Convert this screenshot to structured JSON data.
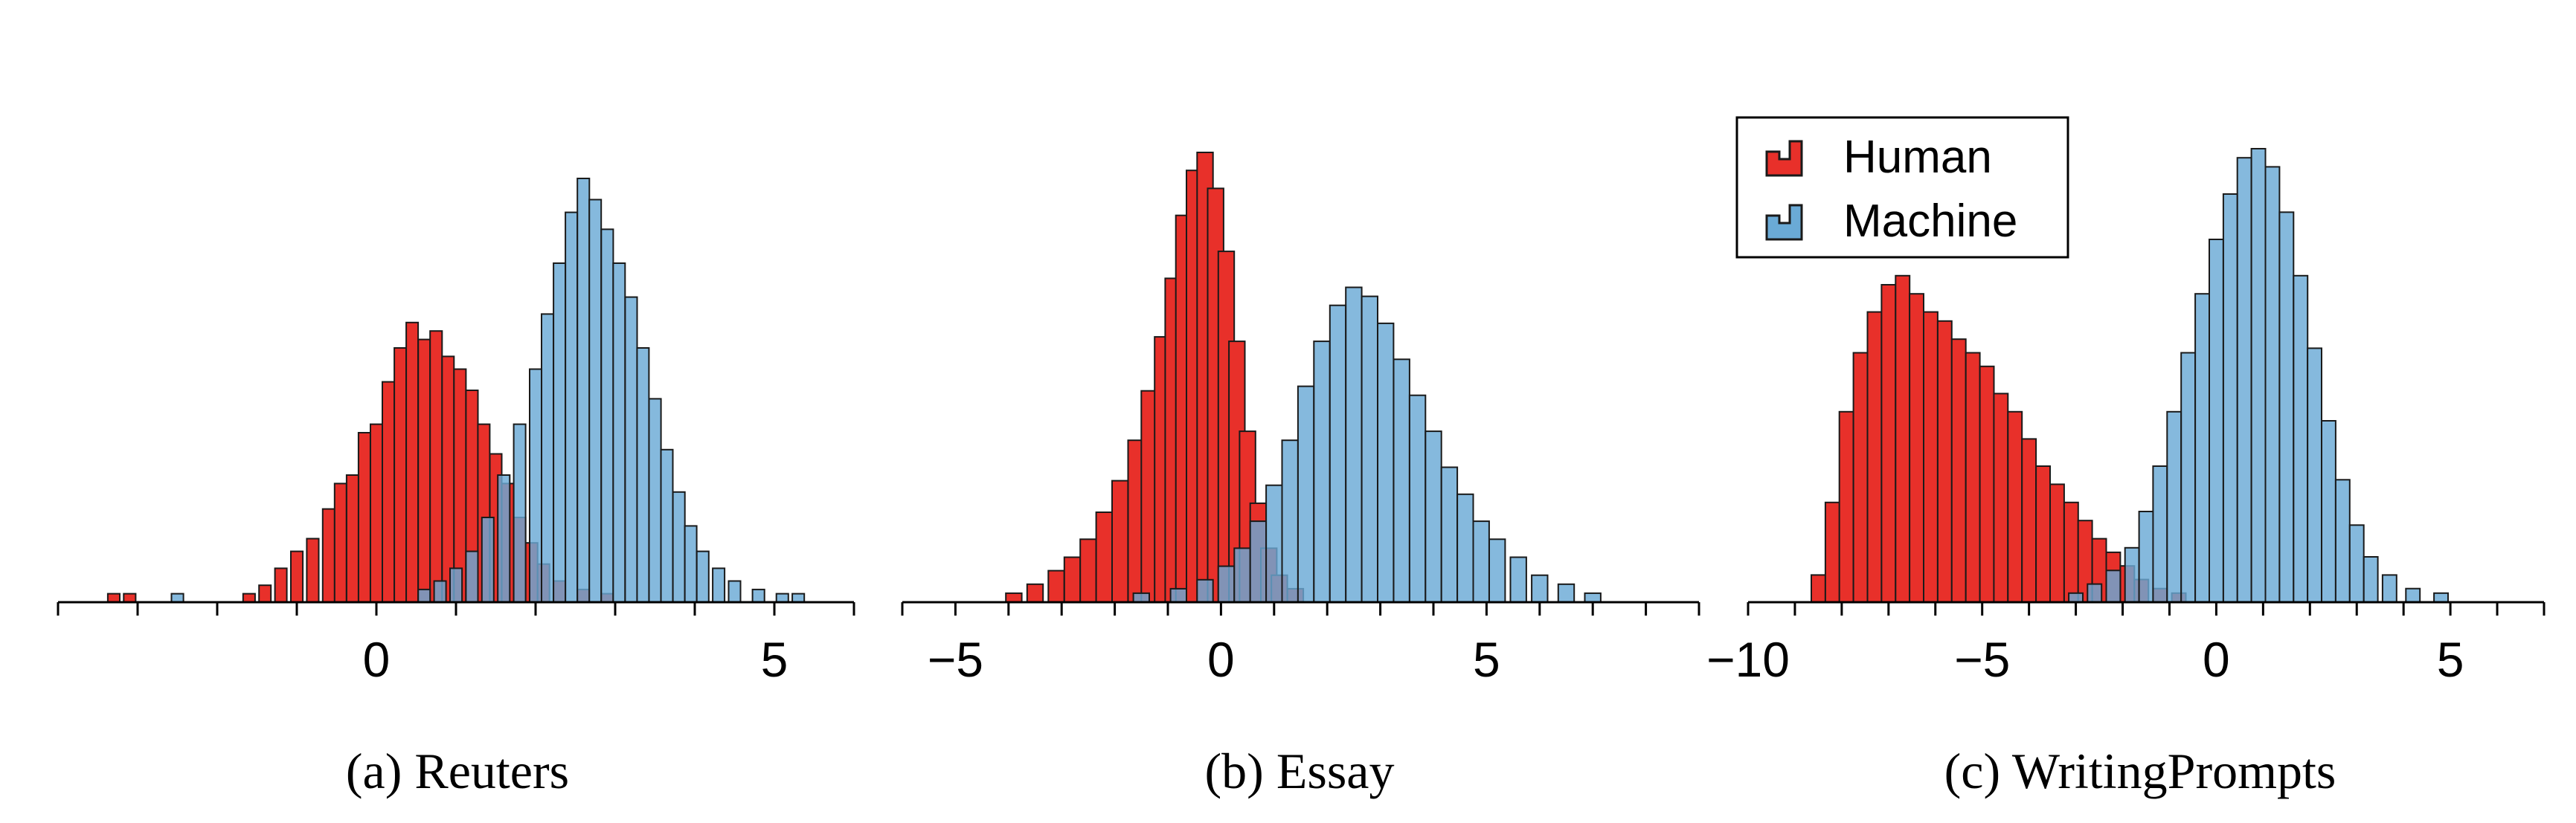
{
  "colors": {
    "human": "#e8302a",
    "machine": "#6aaad6",
    "overlap": "#6a7fa8",
    "stroke": "#1a1a1a"
  },
  "legend": {
    "items": [
      {
        "label": "Human",
        "color": "#e8302a"
      },
      {
        "label": "Machine",
        "color": "#6aaad6"
      }
    ]
  },
  "chart_data": [
    {
      "type": "histogram",
      "caption": "(a) Reuters",
      "xlim": [
        -4,
        6
      ],
      "ticks": [
        0,
        5
      ],
      "tick_labels": [
        "0",
        "5"
      ],
      "series": [
        {
          "name": "Human",
          "bins": [
            [
              -3.3,
              0.02
            ],
            [
              -3.1,
              0.02
            ],
            [
              -1.6,
              0.02
            ],
            [
              -1.4,
              0.04
            ],
            [
              -1.2,
              0.08
            ],
            [
              -1.0,
              0.12
            ],
            [
              -0.8,
              0.15
            ],
            [
              -0.6,
              0.22
            ],
            [
              -0.45,
              0.28
            ],
            [
              -0.3,
              0.3
            ],
            [
              -0.15,
              0.4
            ],
            [
              0.0,
              0.42
            ],
            [
              0.15,
              0.52
            ],
            [
              0.3,
              0.6
            ],
            [
              0.45,
              0.66
            ],
            [
              0.6,
              0.62
            ],
            [
              0.75,
              0.64
            ],
            [
              0.9,
              0.58
            ],
            [
              1.05,
              0.55
            ],
            [
              1.2,
              0.5
            ],
            [
              1.35,
              0.42
            ],
            [
              1.5,
              0.35
            ],
            [
              1.65,
              0.28
            ],
            [
              1.8,
              0.2
            ],
            [
              1.95,
              0.14
            ],
            [
              2.1,
              0.09
            ],
            [
              2.3,
              0.05
            ],
            [
              2.6,
              0.03
            ],
            [
              2.9,
              0.02
            ]
          ]
        },
        {
          "name": "Machine",
          "bins": [
            [
              -2.5,
              0.02
            ],
            [
              0.6,
              0.03
            ],
            [
              0.8,
              0.05
            ],
            [
              1.0,
              0.08
            ],
            [
              1.2,
              0.12
            ],
            [
              1.4,
              0.2
            ],
            [
              1.6,
              0.3
            ],
            [
              1.8,
              0.42
            ],
            [
              2.0,
              0.55
            ],
            [
              2.15,
              0.68
            ],
            [
              2.3,
              0.8
            ],
            [
              2.45,
              0.92
            ],
            [
              2.6,
              1.0
            ],
            [
              2.75,
              0.95
            ],
            [
              2.9,
              0.88
            ],
            [
              3.05,
              0.8
            ],
            [
              3.2,
              0.72
            ],
            [
              3.35,
              0.6
            ],
            [
              3.5,
              0.48
            ],
            [
              3.65,
              0.36
            ],
            [
              3.8,
              0.26
            ],
            [
              3.95,
              0.18
            ],
            [
              4.1,
              0.12
            ],
            [
              4.3,
              0.08
            ],
            [
              4.5,
              0.05
            ],
            [
              4.8,
              0.03
            ],
            [
              5.1,
              0.02
            ],
            [
              5.3,
              0.02
            ]
          ]
        }
      ]
    },
    {
      "type": "histogram",
      "caption": "(b) Essay",
      "xlim": [
        -6,
        9
      ],
      "ticks": [
        -5,
        0,
        5
      ],
      "tick_labels": [
        "−5",
        "0",
        "5"
      ],
      "series": [
        {
          "name": "Human",
          "bins": [
            [
              -3.9,
              0.02
            ],
            [
              -3.5,
              0.04
            ],
            [
              -3.1,
              0.07
            ],
            [
              -2.8,
              0.1
            ],
            [
              -2.5,
              0.14
            ],
            [
              -2.2,
              0.2
            ],
            [
              -1.9,
              0.27
            ],
            [
              -1.6,
              0.36
            ],
            [
              -1.35,
              0.47
            ],
            [
              -1.1,
              0.59
            ],
            [
              -0.9,
              0.72
            ],
            [
              -0.7,
              0.86
            ],
            [
              -0.5,
              0.96
            ],
            [
              -0.3,
              1.0
            ],
            [
              -0.1,
              0.92
            ],
            [
              0.1,
              0.78
            ],
            [
              0.3,
              0.58
            ],
            [
              0.5,
              0.38
            ],
            [
              0.7,
              0.22
            ],
            [
              0.9,
              0.12
            ],
            [
              1.1,
              0.06
            ],
            [
              1.4,
              0.03
            ]
          ]
        },
        {
          "name": "Machine",
          "bins": [
            [
              -1.5,
              0.02
            ],
            [
              -0.8,
              0.03
            ],
            [
              -0.3,
              0.05
            ],
            [
              0.1,
              0.08
            ],
            [
              0.4,
              0.12
            ],
            [
              0.7,
              0.18
            ],
            [
              1.0,
              0.26
            ],
            [
              1.3,
              0.36
            ],
            [
              1.6,
              0.48
            ],
            [
              1.9,
              0.58
            ],
            [
              2.2,
              0.66
            ],
            [
              2.5,
              0.7
            ],
            [
              2.8,
              0.68
            ],
            [
              3.1,
              0.62
            ],
            [
              3.4,
              0.54
            ],
            [
              3.7,
              0.46
            ],
            [
              4.0,
              0.38
            ],
            [
              4.3,
              0.3
            ],
            [
              4.6,
              0.24
            ],
            [
              4.9,
              0.18
            ],
            [
              5.2,
              0.14
            ],
            [
              5.6,
              0.1
            ],
            [
              6.0,
              0.06
            ],
            [
              6.5,
              0.04
            ],
            [
              7.0,
              0.02
            ]
          ]
        }
      ]
    },
    {
      "type": "histogram",
      "caption": "(c) WritingPrompts",
      "xlim": [
        -10,
        7
      ],
      "ticks": [
        -10,
        -5,
        0,
        5
      ],
      "tick_labels": [
        "−10",
        "−5",
        "0",
        "5"
      ],
      "series": [
        {
          "name": "Human",
          "bins": [
            [
              -8.5,
              0.06
            ],
            [
              -8.2,
              0.22
            ],
            [
              -7.9,
              0.42
            ],
            [
              -7.6,
              0.55
            ],
            [
              -7.3,
              0.64
            ],
            [
              -7.0,
              0.7
            ],
            [
              -6.7,
              0.72
            ],
            [
              -6.4,
              0.68
            ],
            [
              -6.1,
              0.64
            ],
            [
              -5.8,
              0.62
            ],
            [
              -5.5,
              0.58
            ],
            [
              -5.2,
              0.55
            ],
            [
              -4.9,
              0.52
            ],
            [
              -4.6,
              0.46
            ],
            [
              -4.3,
              0.42
            ],
            [
              -4.0,
              0.36
            ],
            [
              -3.7,
              0.3
            ],
            [
              -3.4,
              0.26
            ],
            [
              -3.1,
              0.22
            ],
            [
              -2.8,
              0.18
            ],
            [
              -2.5,
              0.14
            ],
            [
              -2.2,
              0.11
            ],
            [
              -1.9,
              0.08
            ],
            [
              -1.6,
              0.05
            ],
            [
              -1.2,
              0.03
            ],
            [
              -0.8,
              0.02
            ]
          ]
        },
        {
          "name": "Machine",
          "bins": [
            [
              -3.0,
              0.02
            ],
            [
              -2.6,
              0.04
            ],
            [
              -2.2,
              0.07
            ],
            [
              -1.8,
              0.12
            ],
            [
              -1.5,
              0.2
            ],
            [
              -1.2,
              0.3
            ],
            [
              -0.9,
              0.42
            ],
            [
              -0.6,
              0.55
            ],
            [
              -0.3,
              0.68
            ],
            [
              0.0,
              0.8
            ],
            [
              0.3,
              0.9
            ],
            [
              0.6,
              0.98
            ],
            [
              0.9,
              1.0
            ],
            [
              1.2,
              0.96
            ],
            [
              1.5,
              0.86
            ],
            [
              1.8,
              0.72
            ],
            [
              2.1,
              0.56
            ],
            [
              2.4,
              0.4
            ],
            [
              2.7,
              0.27
            ],
            [
              3.0,
              0.17
            ],
            [
              3.3,
              0.1
            ],
            [
              3.7,
              0.06
            ],
            [
              4.2,
              0.03
            ],
            [
              4.8,
              0.02
            ]
          ]
        }
      ]
    }
  ]
}
